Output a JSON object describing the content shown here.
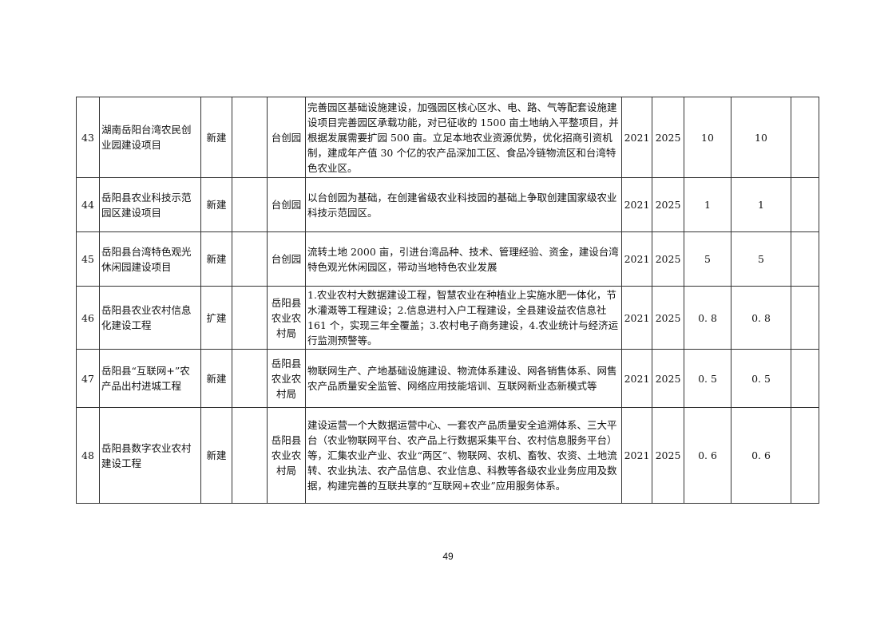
{
  "rows": [
    {
      "no": "43",
      "name": "湖南岳阳台湾农民创业园建设项目",
      "type": "新建",
      "blank": "",
      "unit": "台创园",
      "content": "完善园区基础设施建设，加强园区核心区水、电、路、气等配套设施建设项目完善园区承载功能，对已征收的 1500 亩土地纳入平整项目，并根据发展需要扩园 500 亩。立足本地农业资源优势，优化招商引资机制，建成年产值 30 个亿的农产品深加工区、食品冷链物流区和台湾特色农业区。",
      "start": "2021",
      "end": "2025",
      "total": "10",
      "invest": "10",
      "note": ""
    },
    {
      "no": "44",
      "name": "岳阳县农业科技示范园区建设项目",
      "type": "新建",
      "blank": "",
      "unit": "台创园",
      "content": "以台创园为基础，在创建省级农业科技园的基础上争取创建国家级农业科技示范园区。",
      "start": "2021",
      "end": "2025",
      "total": "1",
      "invest": "1",
      "note": ""
    },
    {
      "no": "45",
      "name": "岳阳县台湾特色观光休闲园建设项目",
      "type": "新建",
      "blank": "",
      "unit": "台创园",
      "content": "流转土地 2000 亩，引进台湾品种、技术、管理经验、资金，建设台湾特色观光休闲园区，带动当地特色农业发展",
      "start": "2021",
      "end": "2025",
      "total": "5",
      "invest": "5",
      "note": ""
    },
    {
      "no": "46",
      "name": "岳阳县农业农村信息化建设工程",
      "type": "扩建",
      "blank": "",
      "unit": "岳阳县农业农村局",
      "content": " 1.农业农村大数据建设工程，智慧农业在种植业上实施水肥一体化，节水灌溉等工程建设；2.信息进村入户工程建设，全县建设益农信息社 161 个，实现三年全覆盖；3.农村电子商务建设，4.农业统计与经济运行监测预警等。",
      "start": "2021",
      "end": "2025",
      "total": "0. 8",
      "invest": "0. 8",
      "note": ""
    },
    {
      "no": "47",
      "name": "岳阳县“互联网+”农产品出村进城工程",
      "type": "新建",
      "blank": "",
      "unit": "岳阳县农业农村局",
      "content": "物联网生产、产地基础设施建设、物流体系建设、网各销售体系、网售农产品质量安全监管、网络应用技能培训、互联网新业态新模式等",
      "start": "2021",
      "end": "2025",
      "total": "0. 5",
      "invest": "0. 5",
      "note": ""
    },
    {
      "no": "48",
      "name": "岳阳县数字农业农村建设工程",
      "type": "新建",
      "blank": "",
      "unit": "岳阳县农业农村局",
      "content": "建设运营一个大数据运营中心、一套农产品质量安全追溯体系、三大平台（农业物联网平台、农产品上行数据采集平台、农村信息服务平台）等，汇集农业产业、农业“两区”、物联网、农机、畜牧、农资、土地流转、农业执法、农产品信息、农业信息、科教等各级农业业务应用及数据，构建完善的互联共享的“互联网+农业”应用服务体系。",
      "start": "2021",
      "end": "2025",
      "total": "0. 6",
      "invest": "0. 6",
      "note": ""
    }
  ],
  "page_number": "49"
}
